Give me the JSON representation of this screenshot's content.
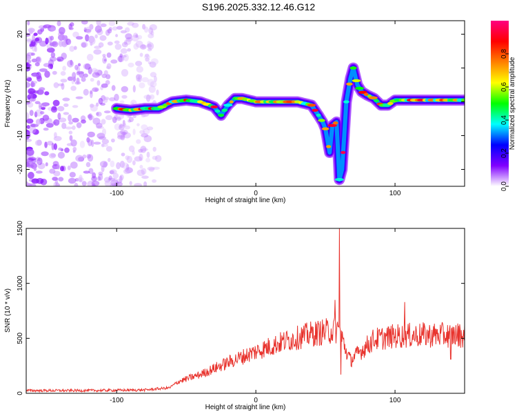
{
  "title": "S196.2025.332.12.46.G12",
  "chart_data": [
    {
      "type": "heatmap",
      "xlabel": "Height of straight line (km)",
      "ylabel": "Frequency (Hz)",
      "xlim": [
        -165,
        150
      ],
      "ylim": [
        -25,
        24
      ],
      "xticks": [
        "-100",
        "0",
        "100"
      ],
      "yticks": [
        "-20",
        "-10",
        "0",
        "10",
        "20"
      ],
      "colorbar": {
        "label": "Normalized spectral amplitude",
        "range": [
          0,
          1
        ],
        "ticks": [
          "0.0",
          "0.2",
          "0.4",
          "0.6",
          "0.8"
        ],
        "colors": [
          "#ffffff",
          "#8000ff",
          "#0000ff",
          "#00ffff",
          "#00ff00",
          "#ffff00",
          "#ff8000",
          "#ff0000",
          "#ff0080"
        ]
      },
      "ridge": {
        "x": [
          -100,
          -90,
          -80,
          -70,
          -60,
          -50,
          -40,
          -30,
          -25,
          -20,
          -15,
          -10,
          0,
          10,
          20,
          30,
          40,
          45,
          48,
          50,
          53,
          55,
          58,
          60,
          62,
          65,
          68,
          70,
          73,
          76,
          80,
          85,
          90,
          95,
          100,
          110,
          120,
          130,
          140,
          150
        ],
        "y": [
          -2,
          -2.5,
          -2,
          -2,
          0,
          0.5,
          0,
          -1.5,
          -4,
          -1,
          1,
          1,
          0,
          0,
          0,
          0,
          -1,
          -4,
          -6,
          -8,
          -15,
          -7,
          -6,
          -23,
          -20,
          0,
          7,
          10,
          5,
          3,
          2,
          1,
          -1,
          -1,
          0.5,
          0.5,
          0.5,
          0.5,
          0.5,
          0.5
        ]
      },
      "noise_region_x": [
        -165,
        -70
      ]
    },
    {
      "type": "line",
      "xlabel": "Height of straight line (km)",
      "ylabel": "SNR (10 * v/v)",
      "xlim": [
        -165,
        150
      ],
      "ylim": [
        0,
        1500
      ],
      "xticks": [
        "-100",
        "0",
        "100"
      ],
      "yticks": [
        "0",
        "500",
        "1000",
        "1500"
      ],
      "color": "#e8322c",
      "series_trend": {
        "x": [
          -165,
          -120,
          -80,
          -62,
          -55,
          -40,
          -20,
          0,
          20,
          40,
          55,
          60,
          62,
          65,
          68,
          75,
          85,
          100,
          120,
          150
        ],
        "y": [
          25,
          25,
          30,
          50,
          110,
          170,
          280,
          380,
          470,
          540,
          570,
          580,
          500,
          380,
          300,
          380,
          490,
          520,
          530,
          530
        ]
      },
      "spikes": [
        {
          "x": 57,
          "y": 850
        },
        {
          "x": 60,
          "y": 1500
        },
        {
          "x": 61,
          "y": 170
        },
        {
          "x": 107,
          "y": 830
        },
        {
          "x": 140,
          "y": 310
        }
      ]
    }
  ]
}
